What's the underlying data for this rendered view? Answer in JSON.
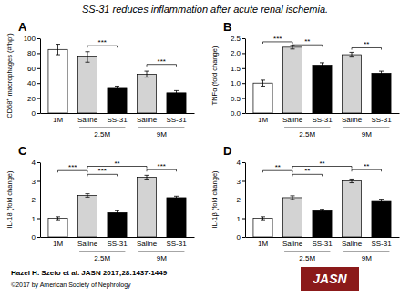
{
  "title": "SS-31 reduces inflammation after acute renal ischemia.",
  "annotations": [
    "Hazel H. Szeto et al. JASN 2017;28:1437-1449",
    "©2017 by American Society of Nephrology",
    "JASN"
  ],
  "chart_data": [
    {
      "type": "bar",
      "title": "A",
      "ylabel": "CD68⁺ macrophages (#/hpf)",
      "categories": [
        "1M",
        "Saline",
        "SS-31",
        "Saline",
        "SS-31"
      ],
      "values": [
        85,
        75,
        33,
        52,
        27
      ],
      "errors": [
        7,
        7,
        3,
        4,
        3
      ],
      "colors": [
        "white",
        "lightgray",
        "black",
        "lightgray",
        "black"
      ],
      "ylim": [
        0,
        100
      ],
      "yticks": [
        0,
        20,
        40,
        60,
        80,
        100
      ],
      "grid": false,
      "annotations": [
        {
          "text": "2.5M",
          "x1": 1,
          "x2": 2
        },
        {
          "text": "9M",
          "x1": 3,
          "x2": 4
        },
        {
          "text": "***",
          "x1": 1,
          "x2": 2,
          "y": 90
        },
        {
          "text": "***",
          "x1": 3,
          "x2": 4,
          "y": 65
        }
      ]
    },
    {
      "type": "bar",
      "title": "B",
      "ylabel": "TNFα (fold change)",
      "categories": [
        "1M",
        "Saline",
        "SS-31",
        "Saline",
        "SS-31"
      ],
      "values": [
        1.0,
        2.2,
        1.6,
        1.95,
        1.33
      ],
      "errors": [
        0.1,
        0.06,
        0.08,
        0.08,
        0.07
      ],
      "colors": [
        "white",
        "lightgray",
        "black",
        "lightgray",
        "black"
      ],
      "ylim": [
        0,
        2.5
      ],
      "yticks": [
        {
          "value": 0,
          "label": "0.0"
        },
        0.5,
        {
          "value": 1,
          "label": "1.0"
        },
        1.5,
        {
          "value": 2,
          "label": "2.0"
        },
        2.5
      ],
      "grid": false,
      "annotations": [
        {
          "text": "2.5M",
          "x1": 1,
          "x2": 2
        },
        {
          "text": "9M",
          "x1": 3,
          "x2": 4
        },
        {
          "text": "***",
          "x1": 0,
          "x2": 1,
          "y": 2.38
        },
        {
          "text": "**",
          "x1": 1,
          "x2": 2,
          "y": 2.28
        },
        {
          "text": "**",
          "x1": 3,
          "x2": 4,
          "y": 2.18
        }
      ]
    },
    {
      "type": "bar",
      "title": "C",
      "ylabel": "IL-18 (fold change)",
      "categories": [
        "1M",
        "Saline",
        "SS-31",
        "Saline",
        "SS-31"
      ],
      "values": [
        1.0,
        2.22,
        1.3,
        3.2,
        2.1
      ],
      "errors": [
        0.08,
        0.09,
        0.1,
        0.1,
        0.08
      ],
      "colors": [
        "white",
        "lightgray",
        "black",
        "lightgray",
        "black"
      ],
      "ylim": [
        0,
        4
      ],
      "yticks": [
        0,
        1,
        2,
        3,
        4
      ],
      "grid": false,
      "annotations": [
        {
          "text": "2.5M",
          "x1": 1,
          "x2": 2
        },
        {
          "text": "9M",
          "x1": 3,
          "x2": 4
        },
        {
          "text": "***",
          "x1": 0,
          "x2": 1,
          "y": 3.55
        },
        {
          "text": "***",
          "x1": 1,
          "x2": 2,
          "y": 3.35
        },
        {
          "text": "**",
          "x1": 1,
          "x2": 3,
          "y": 3.78
        },
        {
          "text": "***",
          "x1": 3,
          "x2": 4,
          "y": 3.6
        }
      ]
    },
    {
      "type": "bar",
      "title": "D",
      "ylabel": "IL-1β (fold change)",
      "categories": [
        "1M",
        "Saline",
        "SS-31",
        "Saline",
        "SS-31"
      ],
      "values": [
        1.0,
        2.1,
        1.4,
        3.0,
        1.9
      ],
      "errors": [
        0.08,
        0.1,
        0.08,
        0.1,
        0.12
      ],
      "colors": [
        "white",
        "lightgray",
        "black",
        "lightgray",
        "black"
      ],
      "ylim": [
        0,
        4
      ],
      "yticks": [
        0,
        1,
        2,
        3,
        4
      ],
      "grid": false,
      "annotations": [
        {
          "text": "2.5M",
          "x1": 1,
          "x2": 2
        },
        {
          "text": "9M",
          "x1": 3,
          "x2": 4
        },
        {
          "text": "**",
          "x1": 0,
          "x2": 1,
          "y": 3.55
        },
        {
          "text": "**",
          "x1": 1,
          "x2": 2,
          "y": 3.35
        },
        {
          "text": "**",
          "x1": 1,
          "x2": 3,
          "y": 3.78
        },
        {
          "text": "**",
          "x1": 3,
          "x2": 4,
          "y": 3.6
        }
      ]
    }
  ]
}
